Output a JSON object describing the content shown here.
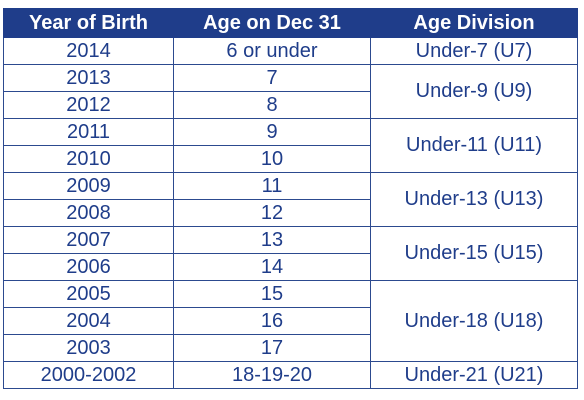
{
  "headers": {
    "year": "Year of Birth",
    "age": "Age on Dec 31",
    "division": "Age Division"
  },
  "rows": [
    {
      "year": "2014",
      "age": "6 or under"
    },
    {
      "year": "2013",
      "age": "7"
    },
    {
      "year": "2012",
      "age": "8"
    },
    {
      "year": "2011",
      "age": "9"
    },
    {
      "year": "2010",
      "age": "10"
    },
    {
      "year": "2009",
      "age": "11"
    },
    {
      "year": "2008",
      "age": "12"
    },
    {
      "year": "2007",
      "age": "13"
    },
    {
      "year": "2006",
      "age": "14"
    },
    {
      "year": "2005",
      "age": "15"
    },
    {
      "year": "2004",
      "age": "16"
    },
    {
      "year": "2003",
      "age": "17"
    },
    {
      "year": "2000-2002",
      "age": "18-19-20"
    }
  ],
  "divisions": [
    "Under-7 (U7)",
    "Under-9 (U9)",
    "Under-11 (U11)",
    "Under-13 (U13)",
    "Under-15 (U15)",
    "Under-18 (U18)",
    "Under-21 (U21)"
  ],
  "colors": {
    "header_background": "#1f3d8a",
    "header_text": "#ffffff",
    "body_text": "#1f3d8a",
    "border": "#2c4a8f"
  }
}
